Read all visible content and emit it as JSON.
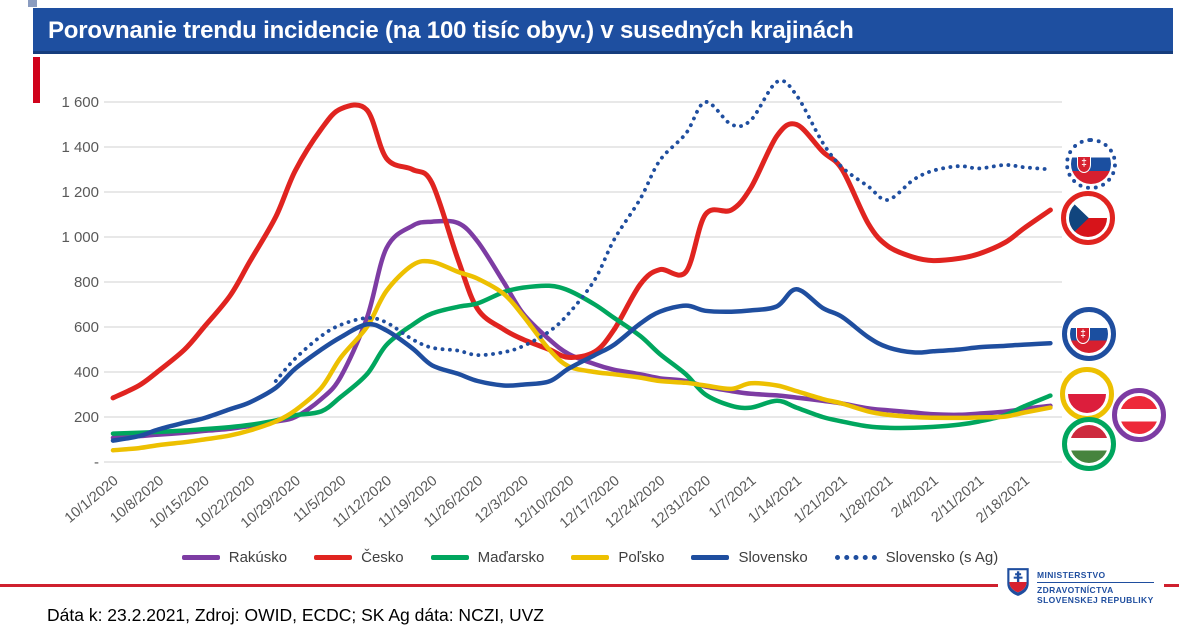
{
  "title": "Porovnanie trendu incidencie (na 100 tisíc obyv.) v susedných krajinách",
  "footer": "Dáta k: 23.2.2021, Zdroj: OWID, ECDC; SK Ag dáta: NCZI, UVZ",
  "ministry_logo": {
    "line1": "MINISTERSTVO",
    "line2": "ZDRAVOTNÍCTVA",
    "line3": "SLOVENSKEJ REPUBLIKY"
  },
  "colors": {
    "title_bar_blue": "#1e4fa0",
    "accent_red": "#d0021b",
    "divider_red": "#cf202e",
    "grid_gray": "#d9d9d9",
    "axis_text_gray": "#595959",
    "ministry_blue": "#1f4e9f"
  },
  "flags": [
    {
      "country": "Slovensko (s Ag)",
      "flag": "slovakia",
      "ring": "dotted-blue"
    },
    {
      "country": "Česko",
      "flag": "czechia",
      "ring": "solid-red"
    },
    {
      "country": "Slovensko",
      "flag": "slovakia",
      "ring": "solid-blue"
    },
    {
      "country": "Poľsko",
      "flag": "poland",
      "ring": "solid-yellow"
    },
    {
      "country": "Rakúsko",
      "flag": "austria",
      "ring": "solid-purple"
    },
    {
      "country": "Maďarsko",
      "flag": "hungary",
      "ring": "solid-green"
    }
  ],
  "chart_data": {
    "type": "line",
    "title": "",
    "xlabel": "",
    "ylabel": "",
    "ylim": [
      0,
      1720
    ],
    "grid": "horizontal",
    "legend_position": "bottom",
    "y_ticks": [
      {
        "value": 1600,
        "label": "1 600"
      },
      {
        "value": 1400,
        "label": "1 400"
      },
      {
        "value": 1200,
        "label": "1 200"
      },
      {
        "value": 1000,
        "label": "1 000"
      },
      {
        "value": 800,
        "label": "800"
      },
      {
        "value": 600,
        "label": "600"
      },
      {
        "value": 400,
        "label": "400"
      },
      {
        "value": 200,
        "label": "200"
      },
      {
        "value": 0,
        "label": "-"
      }
    ],
    "x_tick_labels": [
      "10/1/2020",
      "10/8/2020",
      "10/15/2020",
      "10/22/2020",
      "10/29/2020",
      "11/5/2020",
      "11/12/2020",
      "11/19/2020",
      "11/26/2020",
      "12/3/2020",
      "12/10/2020",
      "12/17/2020",
      "12/24/2020",
      "12/31/2020",
      "1/7/2021",
      "1/14/2021",
      "1/21/2021",
      "1/28/2021",
      "2/4/2021",
      "2/11/2021",
      "2/18/2021"
    ],
    "x_days": [
      0,
      4,
      7,
      11,
      14,
      18,
      21,
      25,
      28,
      32,
      35,
      39,
      42,
      46,
      49,
      53,
      56,
      60,
      63,
      67,
      70,
      74,
      77,
      81,
      84,
      88,
      91,
      95,
      98,
      102,
      105,
      109,
      112,
      116,
      119,
      123,
      126,
      130,
      133,
      137,
      140,
      144
    ],
    "series": [
      {
        "name": "Rakúsko",
        "color": "#7d3ca3",
        "style": "solid",
        "values": [
          108,
          115,
          122,
          130,
          138,
          148,
          160,
          180,
          200,
          280,
          380,
          640,
          950,
          1050,
          1068,
          1062,
          980,
          800,
          660,
          545,
          480,
          435,
          410,
          390,
          372,
          360,
          335,
          315,
          303,
          296,
          286,
          272,
          260,
          238,
          230,
          220,
          212,
          210,
          215,
          224,
          236,
          250
        ]
      },
      {
        "name": "Česko",
        "color": "#e02420",
        "style": "solid",
        "values": [
          285,
          340,
          405,
          500,
          600,
          740,
          890,
          1090,
          1295,
          1480,
          1570,
          1565,
          1350,
          1300,
          1240,
          900,
          680,
          590,
          545,
          500,
          465,
          490,
          590,
          790,
          855,
          845,
          1100,
          1120,
          1220,
          1450,
          1500,
          1380,
          1300,
          1060,
          960,
          910,
          895,
          905,
          925,
          975,
          1040,
          1120
        ]
      },
      {
        "name": "Maďarsko",
        "color": "#00a65e",
        "style": "solid",
        "values": [
          126,
          130,
          134,
          140,
          146,
          155,
          165,
          185,
          208,
          225,
          290,
          390,
          520,
          610,
          660,
          690,
          705,
          755,
          775,
          783,
          762,
          700,
          640,
          560,
          480,
          390,
          300,
          250,
          242,
          272,
          242,
          200,
          180,
          158,
          152,
          152,
          156,
          166,
          180,
          208,
          248,
          295
        ]
      },
      {
        "name": "Poľsko",
        "color": "#edc001",
        "style": "solid",
        "values": [
          52,
          62,
          75,
          88,
          100,
          118,
          140,
          180,
          230,
          330,
          465,
          600,
          760,
          875,
          890,
          845,
          815,
          748,
          650,
          500,
          425,
          400,
          390,
          375,
          360,
          352,
          340,
          325,
          350,
          340,
          315,
          280,
          260,
          225,
          210,
          200,
          197,
          196,
          198,
          202,
          220,
          242
        ]
      },
      {
        "name": "Slovensko",
        "color": "#1f4e9f",
        "style": "solid",
        "values": [
          95,
          115,
          145,
          175,
          195,
          235,
          265,
          330,
          415,
          500,
          555,
          612,
          585,
          505,
          430,
          392,
          360,
          340,
          344,
          358,
          415,
          475,
          522,
          615,
          668,
          695,
          672,
          668,
          674,
          692,
          768,
          685,
          645,
          555,
          510,
          487,
          492,
          500,
          510,
          516,
          522,
          528
        ]
      },
      {
        "name": "Slovensko (s Ag)",
        "color": "#1f4e9f",
        "style": "dotted",
        "values": [
          null,
          null,
          null,
          null,
          null,
          null,
          null,
          360,
          460,
          560,
          610,
          640,
          620,
          545,
          508,
          495,
          475,
          488,
          515,
          580,
          660,
          810,
          990,
          1170,
          1340,
          1460,
          1600,
          1500,
          1520,
          1690,
          1630,
          1420,
          1310,
          1225,
          1165,
          1255,
          1295,
          1315,
          1305,
          1320,
          1310,
          1300
        ]
      }
    ]
  }
}
